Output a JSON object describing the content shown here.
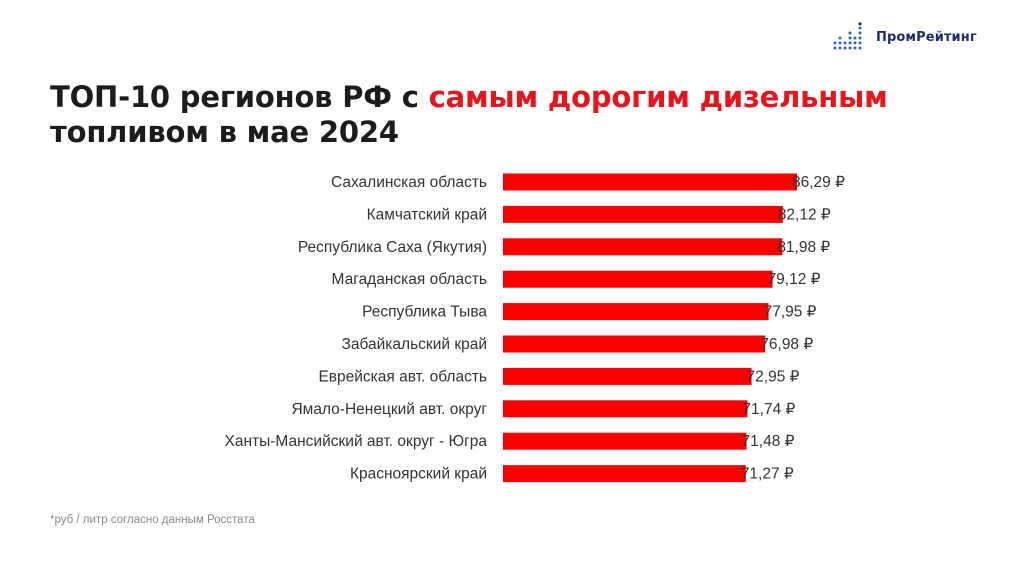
{
  "brand": {
    "name_part1": "Пром",
    "name_part2": "Рейтинг",
    "accent_color": "#1f2d6b",
    "logo_icon": "bar-dots-icon"
  },
  "title": {
    "part1": "ТОП-10 регионов РФ с ",
    "part2_highlight": "самым дорогим дизельным",
    "part3": "топливом в мае 2024",
    "highlight_color": "#e8141b"
  },
  "footnote": "*руб / литр согласно данным Росстата",
  "chart_data": {
    "type": "bar",
    "orientation": "horizontal",
    "bar_color": "#fb0000",
    "grid": false,
    "categories": [
      "Сахалинская область",
      "Камчатский край",
      "Республика Саха (Якутия)",
      "Магаданская область",
      "Республика Тыва",
      "Забайкальский край",
      "Еврейская авт. область",
      "Ямало-Ненецкий авт. округ",
      "Ханты-Мансийский авт. округ - Югра",
      "Красноярский край"
    ],
    "values": [
      86.29,
      82.12,
      81.98,
      79.12,
      77.95,
      76.98,
      72.95,
      71.74,
      71.48,
      71.27
    ],
    "value_labels": [
      "86,29 ₽",
      "82,12 ₽",
      "81,98 ₽",
      "79,12 ₽",
      "77,95 ₽",
      "76,98 ₽",
      "72,95 ₽",
      "71,74 ₽",
      "71,48 ₽",
      "71,27 ₽"
    ]
  }
}
